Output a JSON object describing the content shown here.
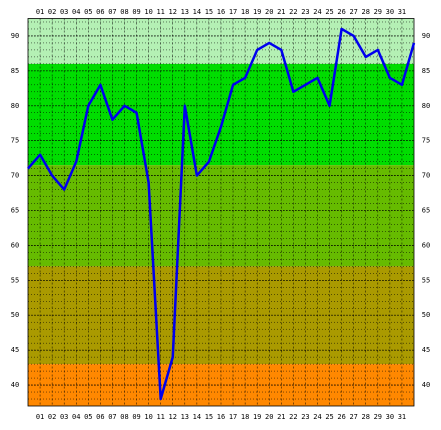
{
  "chart_data": {
    "type": "line",
    "x": [
      0,
      1,
      2,
      3,
      4,
      5,
      6,
      7,
      8,
      9,
      10,
      11,
      12,
      13,
      14,
      15,
      16,
      17,
      18,
      19,
      20,
      21,
      22,
      23,
      24,
      25,
      26,
      27,
      28,
      29,
      30,
      31,
      32
    ],
    "series": [
      {
        "color": "#0000ee",
        "values": [
          71,
          73,
          70,
          68,
          72,
          80,
          83,
          78,
          80,
          79,
          69,
          38,
          44,
          80,
          70,
          72,
          77,
          83,
          84,
          88,
          89,
          88,
          82,
          83,
          84,
          80,
          91,
          90,
          87,
          88,
          84,
          83,
          89
        ]
      }
    ],
    "xlim": [
      0,
      32
    ],
    "xticks": [
      {
        "value": 1,
        "label": "01"
      },
      {
        "value": 2,
        "label": "02"
      },
      {
        "value": 3,
        "label": "03"
      },
      {
        "value": 4,
        "label": "04"
      },
      {
        "value": 5,
        "label": "05"
      },
      {
        "value": 6,
        "label": "06"
      },
      {
        "value": 7,
        "label": "07"
      },
      {
        "value": 8,
        "label": "08"
      },
      {
        "value": 9,
        "label": "09"
      },
      10,
      11,
      12,
      13,
      14,
      15,
      16,
      17,
      18,
      19,
      20,
      21,
      22,
      23,
      24,
      25,
      26,
      27,
      28,
      29,
      30,
      31
    ],
    "ylim": [
      37,
      92.5
    ],
    "yticks": [
      40,
      45,
      50,
      55,
      60,
      65,
      70,
      75,
      80,
      85,
      90
    ],
    "yminorticks": [
      38,
      39,
      40,
      41,
      42,
      43,
      44,
      45,
      46,
      47,
      48,
      49,
      50,
      51,
      52,
      53,
      54,
      55,
      56,
      57,
      58,
      59,
      60,
      61,
      62,
      63,
      64,
      65,
      66,
      67,
      68,
      69,
      70,
      71,
      72,
      73,
      74,
      75,
      76,
      77,
      78,
      79,
      80,
      81,
      82,
      83,
      84,
      85,
      86,
      87,
      88,
      89,
      90,
      91,
      92
    ],
    "grid": true,
    "bands": [
      {
        "from": 86,
        "to": 92.5,
        "color": "#b4f0b4"
      },
      {
        "from": 71.5,
        "to": 86,
        "color": "#00dd00"
      },
      {
        "from": 57,
        "to": 71.5,
        "color": "#66bb00"
      },
      {
        "from": 43,
        "to": 57,
        "color": "#aa9a00"
      },
      {
        "from": 37,
        "to": 43,
        "color": "#ff8800"
      }
    ]
  }
}
